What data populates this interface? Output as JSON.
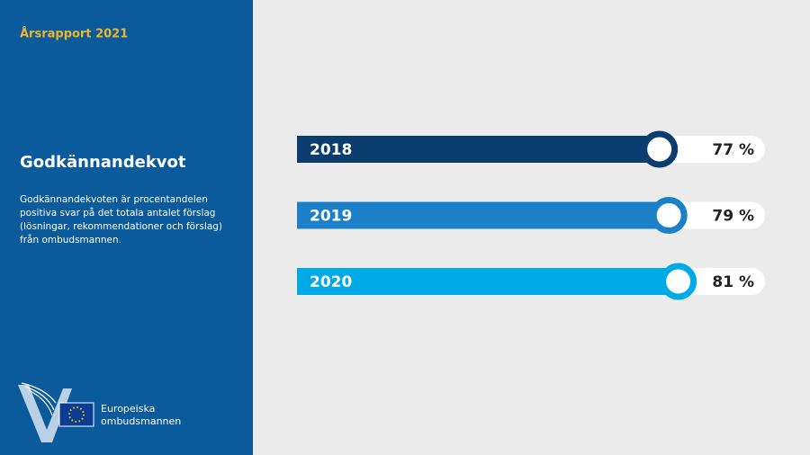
{
  "header": "Årsrapport 2021",
  "description": [
    "Godkännandekvoten är procentandelen",
    "positiva svar på det totala antalet förslag",
    "(lösningar, rekommendationer och förslag)",
    "från ombudsmannen."
  ],
  "logo": [
    "Europeiska",
    "ombudsmannen"
  ],
  "chart_data": {
    "type": "bar",
    "orientation": "horizontal",
    "title": "Godkännandekvot",
    "categories": [
      "2018",
      "2019",
      "2020"
    ],
    "values": [
      77,
      79,
      81
    ],
    "value_labels": [
      "77 %",
      "79 %",
      "81 %"
    ],
    "colors": [
      "#0b3d6e",
      "#1b80c8",
      "#00aae7"
    ],
    "xlim": [
      0,
      100
    ]
  }
}
